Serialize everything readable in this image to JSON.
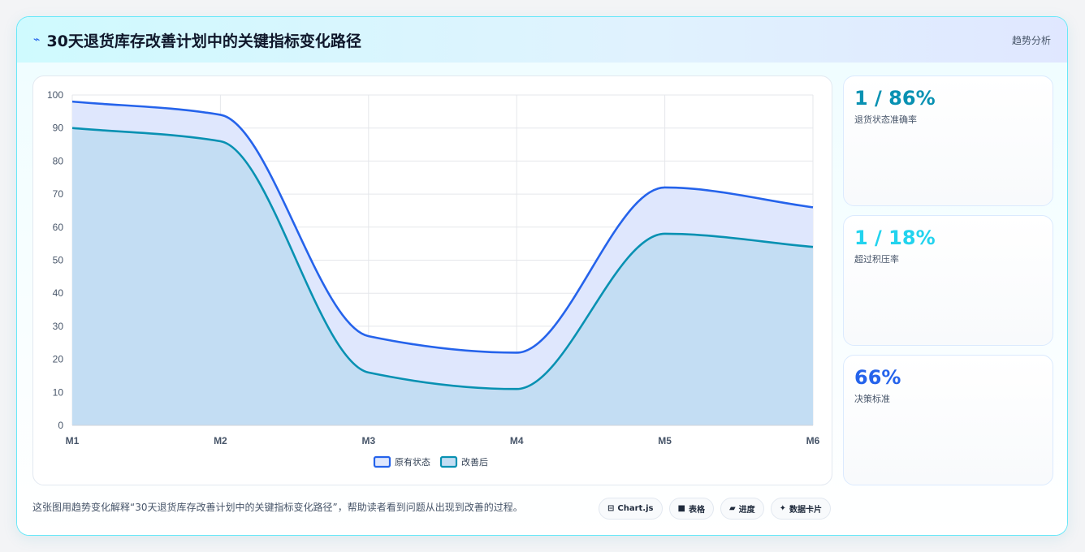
{
  "header": {
    "icon": "bolt-icon",
    "title": "30天退货库存改善计划中的关键指标变化路径",
    "tag": "趋势分析"
  },
  "kpis": [
    {
      "value": "1 / 86%",
      "label": "退货状态准确率",
      "color": "#0891b2"
    },
    {
      "value": "1 / 18%",
      "label": "超过积压率",
      "color": "#22d3ee"
    },
    {
      "value": "66%",
      "label": "决策标准",
      "color": "#2563eb"
    }
  ],
  "footer": {
    "text": "这张图用趋势变化解释“30天退货库存改善计划中的关键指标变化路径”，帮助读者看到问题从出现到改善的过程。",
    "pills": [
      {
        "icon": "table-icon",
        "label": "Chart.js"
      },
      {
        "icon": "square-icon",
        "label": "表格"
      },
      {
        "icon": "progress-icon",
        "label": "进度"
      },
      {
        "icon": "sparkle-icon",
        "label": "数据卡片"
      }
    ]
  },
  "colors": {
    "series_a": "#2563eb",
    "series_b": "#0891b2",
    "fill_a": "#dfe7fd",
    "fill_b": "#c3ddf3"
  },
  "chart_data": {
    "type": "area",
    "categories": [
      "M1",
      "M2",
      "M3",
      "M4",
      "M5",
      "M6"
    ],
    "series": [
      {
        "name": "原有状态",
        "values": [
          98,
          94,
          27,
          22,
          72,
          66
        ]
      },
      {
        "name": "改善后",
        "values": [
          90,
          86,
          16,
          11,
          58,
          54
        ]
      }
    ],
    "ylim": [
      0,
      100
    ],
    "yticks": [
      0,
      10,
      20,
      30,
      40,
      50,
      60,
      70,
      80,
      90,
      100
    ],
    "grid": true,
    "legend": "bottom-center"
  }
}
